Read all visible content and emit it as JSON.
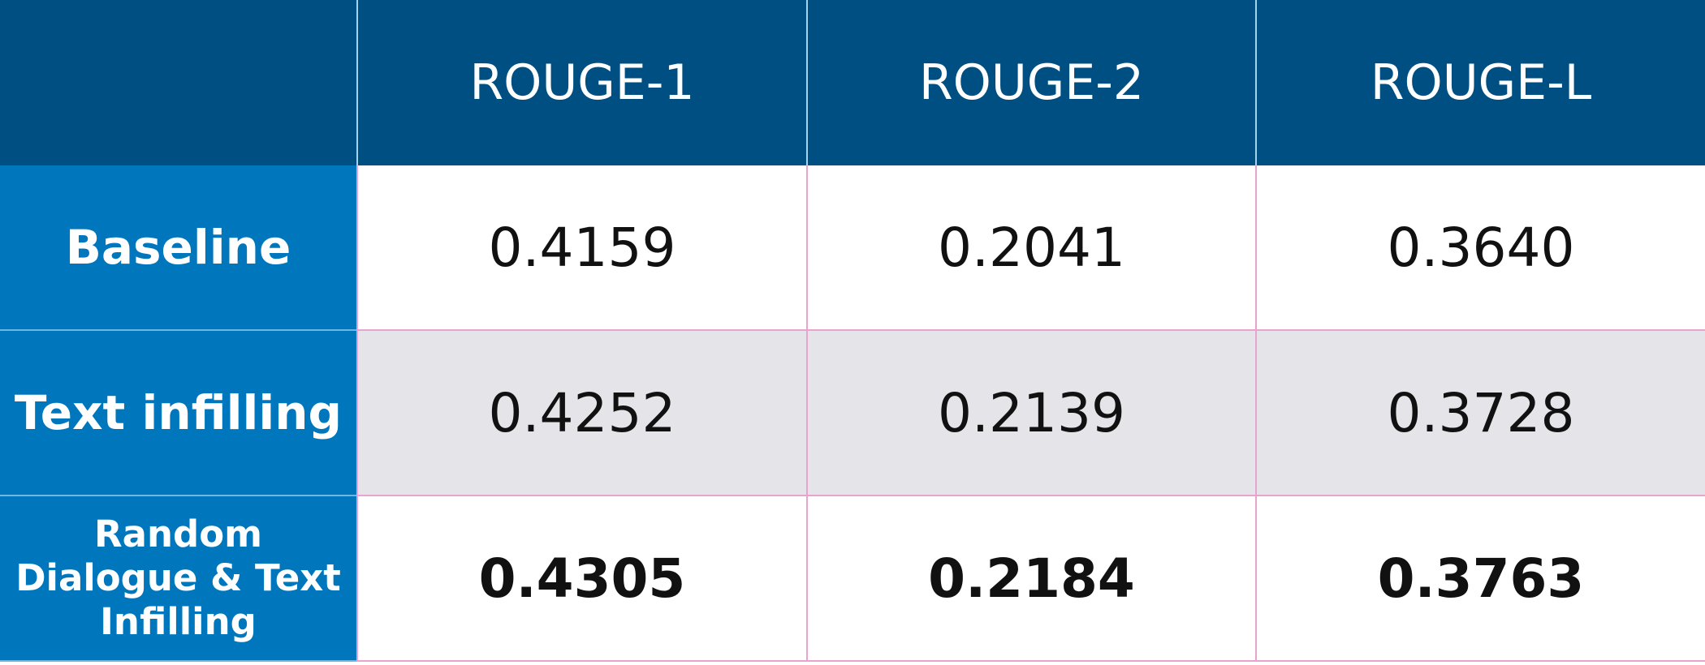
{
  "table": {
    "header": [
      "ROUGE-1",
      "ROUGE-2",
      "ROUGE-L"
    ],
    "rows": [
      {
        "label": "Baseline",
        "values": [
          "0.4159",
          "0.2041",
          "0.3640"
        ]
      },
      {
        "label": "Text infilling",
        "values": [
          "0.4252",
          "0.2139",
          "0.3728"
        ]
      },
      {
        "label": "Random Dialogue & Text Infilling",
        "values": [
          "0.4305",
          "0.2184",
          "0.3763"
        ]
      }
    ]
  }
}
